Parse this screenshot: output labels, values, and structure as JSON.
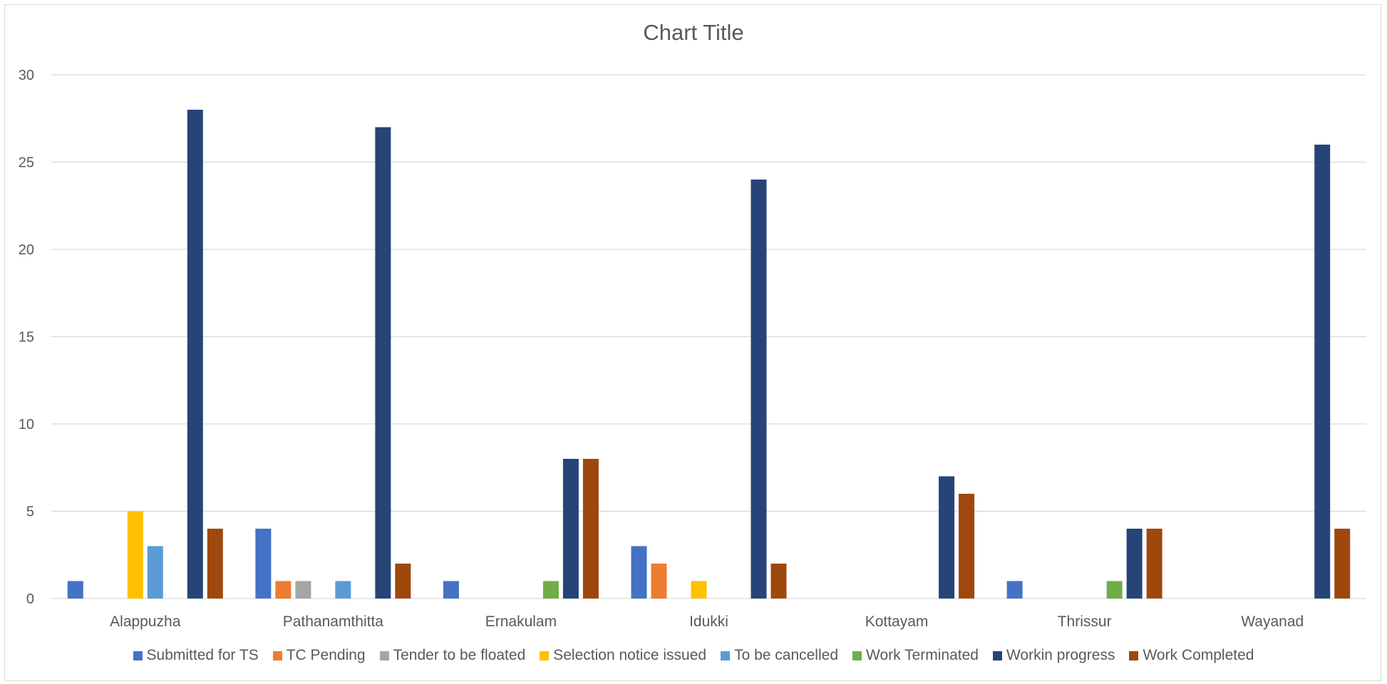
{
  "chart_data": {
    "type": "bar",
    "title": "Chart Title",
    "xlabel": "",
    "ylabel": "",
    "ylim": [
      0,
      30
    ],
    "yticks": [
      0,
      5,
      10,
      15,
      20,
      25,
      30
    ],
    "grid": true,
    "legend_position": "bottom",
    "categories": [
      "Alappuzha",
      "Pathanamthitta",
      "Ernakulam",
      "Idukki",
      "Kottayam",
      "Thrissur",
      "Wayanad"
    ],
    "series": [
      {
        "name": "Submitted for TS",
        "color": "#4472C4",
        "values": [
          1,
          4,
          1,
          3,
          0,
          1,
          0
        ]
      },
      {
        "name": "TC Pending",
        "color": "#ED7D31",
        "values": [
          0,
          1,
          0,
          2,
          0,
          0,
          0
        ]
      },
      {
        "name": "Tender to be floated",
        "color": "#A5A5A5",
        "values": [
          0,
          1,
          0,
          0,
          0,
          0,
          0
        ]
      },
      {
        "name": "Selection notice issued",
        "color": "#FFC000",
        "values": [
          5,
          0,
          0,
          1,
          0,
          0,
          0
        ]
      },
      {
        "name": "To be cancelled",
        "color": "#5B9BD5",
        "values": [
          3,
          1,
          0,
          0,
          0,
          0,
          0
        ]
      },
      {
        "name": "Work Terminated",
        "color": "#70AD47",
        "values": [
          0,
          0,
          1,
          0,
          0,
          1,
          0
        ]
      },
      {
        "name": "Workin progress",
        "color": "#264478",
        "values": [
          28,
          27,
          8,
          24,
          7,
          4,
          26
        ]
      },
      {
        "name": "Work Completed",
        "color": "#9E480E",
        "values": [
          4,
          2,
          8,
          2,
          6,
          4,
          4
        ]
      }
    ]
  }
}
